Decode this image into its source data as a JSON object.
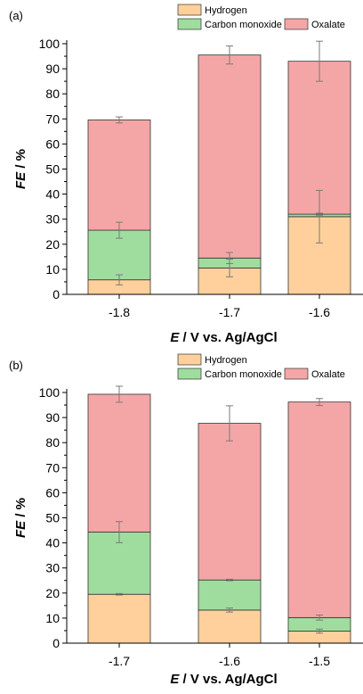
{
  "colors": {
    "hydrogen": "#ffd09b",
    "carbon_monoxide": "#9fdd9f",
    "oxalate": "#f4a6a6",
    "axis": "#000000",
    "errorbar": "#7a7a7a"
  },
  "legend": {
    "hydrogen": "Hydrogen",
    "carbon_monoxide": "Carbon monoxide",
    "oxalate": "Oxalate"
  },
  "chart_data": [
    {
      "panel_label": "(a)",
      "type": "bar",
      "stacked": true,
      "categories": [
        "-1.8",
        "-1.7",
        "-1.6"
      ],
      "series": [
        {
          "name": "Hydrogen",
          "values": [
            5.8,
            10.5,
            31
          ],
          "errors": [
            2,
            3.5,
            10.5
          ]
        },
        {
          "name": "Carbon monoxide",
          "values": [
            19.8,
            4,
            1
          ],
          "errors": [
            3.2,
            2.2,
            0.4
          ]
        },
        {
          "name": "Oxalate",
          "values": [
            44,
            81,
            61
          ],
          "errors": [
            1.2,
            3.6,
            8
          ]
        }
      ],
      "ylabel_italic": "FE",
      "ylabel_rest": " / %",
      "xlabel_italic": "E",
      "xlabel_rest": " / V vs. Ag/AgCl",
      "ylim": [
        0,
        100
      ],
      "yticks": [
        "0",
        "10",
        "20",
        "30",
        "40",
        "50",
        "60",
        "70",
        "80",
        "90",
        "100"
      ],
      "legend_position": "top"
    },
    {
      "panel_label": "(b)",
      "type": "bar",
      "stacked": true,
      "categories": [
        "-1.7",
        "-1.6",
        "-1.5"
      ],
      "series": [
        {
          "name": "Hydrogen",
          "values": [
            19.5,
            13.2,
            4.8
          ],
          "errors": [
            0.3,
            0.8,
            0.8
          ]
        },
        {
          "name": "Carbon monoxide",
          "values": [
            24.8,
            12,
            5.4
          ],
          "errors": [
            4.2,
            0.3,
            1
          ]
        },
        {
          "name": "Oxalate",
          "values": [
            55,
            62.5,
            86
          ],
          "errors": [
            3.2,
            7,
            1.4
          ]
        }
      ],
      "ylabel_italic": "FE",
      "ylabel_rest": " / %",
      "xlabel_italic": "E",
      "xlabel_rest": " / V vs. Ag/AgCl",
      "ylim": [
        0,
        100
      ],
      "yticks": [
        "0",
        "10",
        "20",
        "30",
        "40",
        "50",
        "60",
        "70",
        "80",
        "90",
        "100"
      ],
      "legend_position": "top"
    }
  ]
}
